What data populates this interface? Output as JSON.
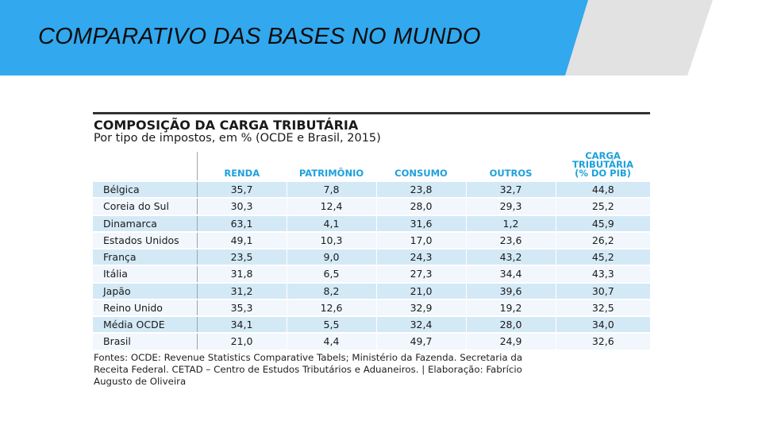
{
  "slide": {
    "title": "COMPARATIVO DAS BASES NO MUNDO",
    "colors": {
      "banner_blue": "#32a8ee",
      "banner_grey": "#e2e2e2",
      "header_blue": "#1ea0dc"
    }
  },
  "chart_data": {
    "type": "table",
    "title": "COMPOSIÇÃO DA CARGA TRIBUTÁRIA",
    "subtitle": "Por tipo de impostos, em % (OCDE e Brasil, 2015)",
    "columns": [
      "RENDA",
      "PATRIMÔNIO",
      "CONSUMO",
      "OUTROS",
      "CARGA TRIBUTÁRIA (% DO PIB)"
    ],
    "column_header_lines": [
      [
        "RENDA"
      ],
      [
        "PATRIMÔNIO"
      ],
      [
        "CONSUMO"
      ],
      [
        "OUTROS"
      ],
      [
        "CARGA",
        "TRIBUTÁRIA",
        "(% DO PIB)"
      ]
    ],
    "rows": [
      {
        "country": "Bélgica",
        "values": [
          "35,7",
          "7,8",
          "23,8",
          "32,7",
          "44,8"
        ]
      },
      {
        "country": "Coreia do Sul",
        "values": [
          "30,3",
          "12,4",
          "28,0",
          "29,3",
          "25,2"
        ]
      },
      {
        "country": "Dinamarca",
        "values": [
          "63,1",
          "4,1",
          "31,6",
          "1,2",
          "45,9"
        ]
      },
      {
        "country": "Estados Unidos",
        "values": [
          "49,1",
          "10,3",
          "17,0",
          "23,6",
          "26,2"
        ]
      },
      {
        "country": "França",
        "values": [
          "23,5",
          "9,0",
          "24,3",
          "43,2",
          "45,2"
        ]
      },
      {
        "country": "Itália",
        "values": [
          "31,8",
          "6,5",
          "27,3",
          "34,4",
          "43,3"
        ]
      },
      {
        "country": "Japão",
        "values": [
          "31,2",
          "8,2",
          "21,0",
          "39,6",
          "30,7"
        ]
      },
      {
        "country": "Reino Unido",
        "values": [
          "35,3",
          "12,6",
          "32,9",
          "19,2",
          "32,5"
        ]
      },
      {
        "country": "Média OCDE",
        "values": [
          "34,1",
          "5,5",
          "32,4",
          "28,0",
          "34,0"
        ]
      },
      {
        "country": "Brasil",
        "values": [
          "21,0",
          "4,4",
          "49,7",
          "24,9",
          "32,6"
        ]
      }
    ],
    "source_lines": [
      "Fontes: OCDE: Revenue Statistics Comparative Tabels; Ministério da Fazenda. Secretaria da",
      "Receita Federal. CETAD – Centro de Estudos Tributários e Aduaneiros. | Elaboração: Fabrício",
      "Augusto de Oliveira"
    ]
  }
}
